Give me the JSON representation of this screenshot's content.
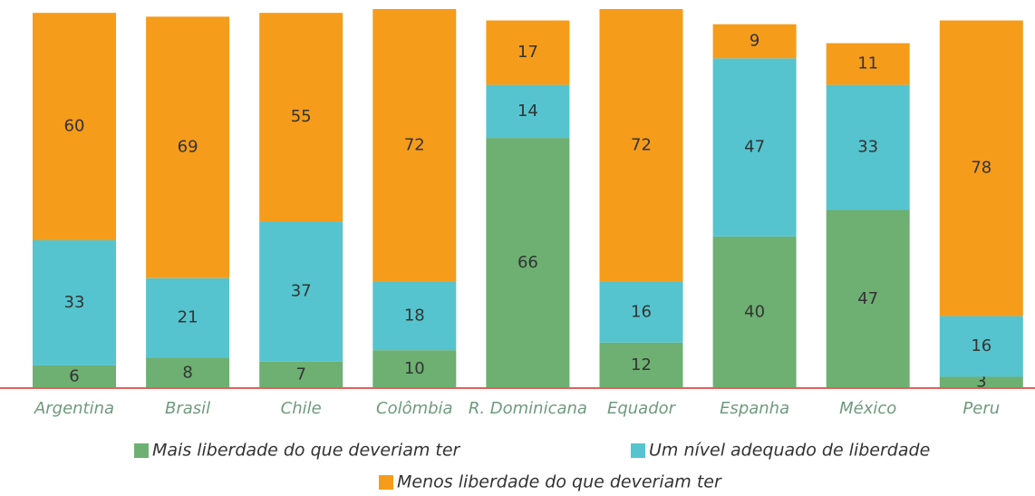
{
  "chart_data": {
    "type": "stacked_bar",
    "categories": [
      "Argentina",
      "Brasil",
      "Chile",
      "Colômbia",
      "R. Dominicana",
      "Equador",
      "Espanha",
      "México",
      "Peru"
    ],
    "series": [
      {
        "name": "Mais liberdade do que deveriam ter",
        "color": "#6db072",
        "values": [
          6,
          8,
          7,
          10,
          66,
          12,
          40,
          47,
          3
        ]
      },
      {
        "name": "Um nível adequado de liberdade",
        "color": "#55c4cf",
        "values": [
          33,
          21,
          37,
          18,
          14,
          16,
          47,
          33,
          16
        ]
      },
      {
        "name": "Menos liberdade do que deveriam ter",
        "color": "#f59c1a",
        "values": [
          60,
          69,
          55,
          72,
          17,
          72,
          9,
          11,
          78
        ]
      }
    ],
    "legend": "bottom"
  }
}
